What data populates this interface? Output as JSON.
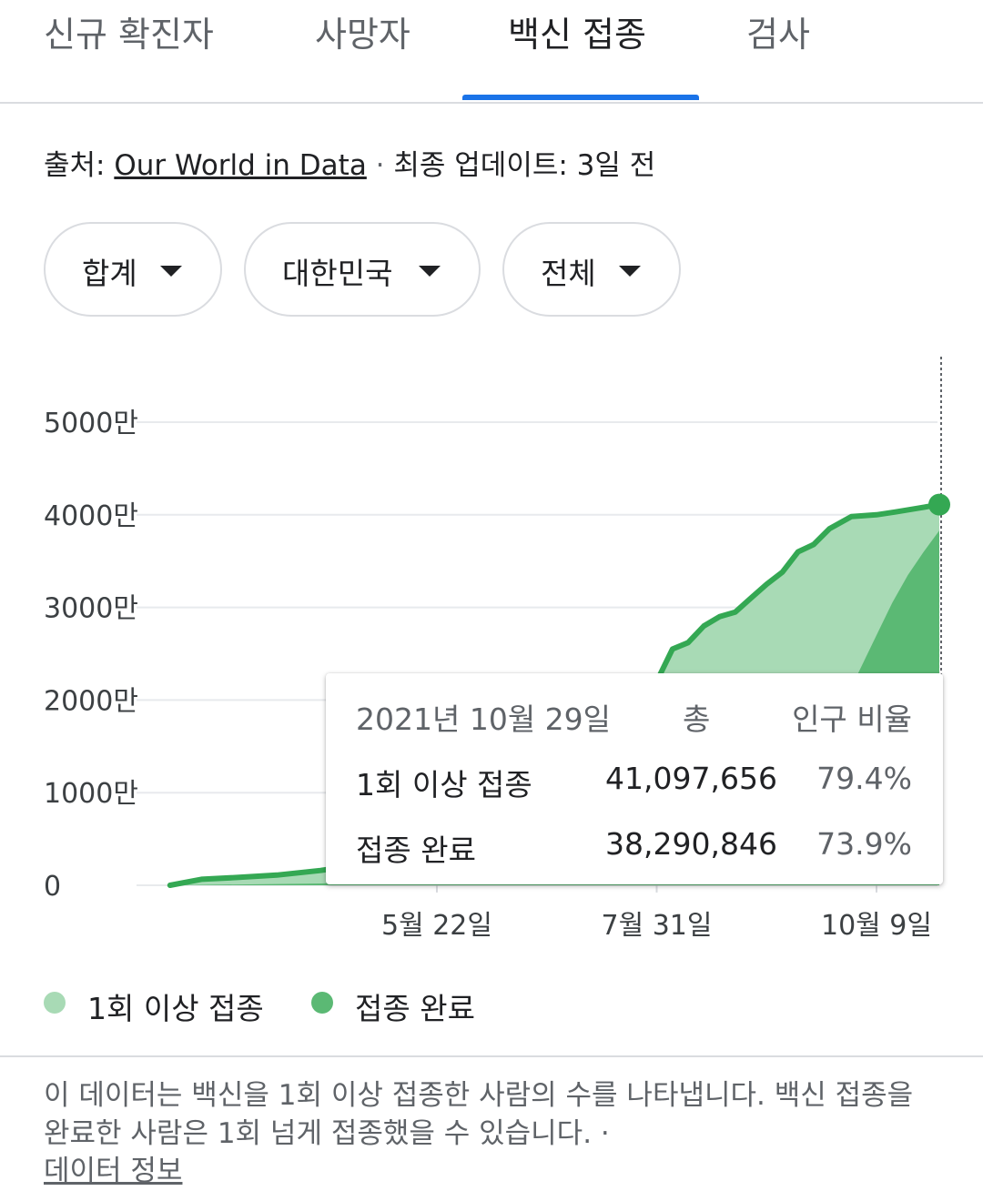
{
  "tabs": [
    {
      "label": "신규 확진자",
      "active": false
    },
    {
      "label": "사망자",
      "active": false
    },
    {
      "label": "백신 접종",
      "active": true
    },
    {
      "label": "검사",
      "active": false
    }
  ],
  "source": {
    "prefix": "출처: ",
    "name": "Our World in Data",
    "separator": " · ",
    "updated": "최종 업데이트: 3일 전"
  },
  "filters": [
    {
      "label": "합계"
    },
    {
      "label": "대한민국"
    },
    {
      "label": "전체"
    }
  ],
  "chart_data": {
    "type": "area",
    "y_unit": "만",
    "ylim": [
      0,
      5000
    ],
    "y_ticks": [
      "0",
      "1000만",
      "2000만",
      "3000만",
      "4000만",
      "5000만"
    ],
    "x_ticks": [
      "5월 22일",
      "7월 31일",
      "10월 9일"
    ],
    "colors": {
      "one_dose": "#a8dab5",
      "full": "#5bb974",
      "line": "#34a853"
    },
    "series": [
      {
        "name": "1회 이상 접종",
        "x": [
          "2021-02-26",
          "2021-03-08",
          "2021-03-20",
          "2021-04-01",
          "2021-04-15",
          "2021-04-29",
          "2021-05-05",
          "2021-05-12",
          "2021-05-22",
          "2021-06-01",
          "2021-06-10",
          "2021-06-20",
          "2021-07-01",
          "2021-07-10",
          "2021-07-20",
          "2021-07-26",
          "2021-07-31",
          "2021-08-05",
          "2021-08-10",
          "2021-08-15",
          "2021-08-20",
          "2021-08-25",
          "2021-08-30",
          "2021-09-04",
          "2021-09-09",
          "2021-09-14",
          "2021-09-19",
          "2021-09-24",
          "2021-10-01",
          "2021-10-09",
          "2021-10-15",
          "2021-10-22",
          "2021-10-29"
        ],
        "values": [
          0,
          65,
          85,
          110,
          160,
          230,
          280,
          360,
          480,
          700,
          1000,
          1300,
          1500,
          1560,
          1600,
          1800,
          2200,
          2550,
          2620,
          2800,
          2900,
          2950,
          3100,
          3250,
          3380,
          3600,
          3680,
          3850,
          3980,
          4000,
          4030,
          4070,
          4110
        ]
      },
      {
        "name": "접종 완료",
        "x": [
          "2021-02-26",
          "2021-04-15",
          "2021-05-22",
          "2021-06-10",
          "2021-07-01",
          "2021-07-31",
          "2021-08-15",
          "2021-08-30",
          "2021-09-09",
          "2021-09-19",
          "2021-09-24",
          "2021-09-29",
          "2021-10-04",
          "2021-10-09",
          "2021-10-14",
          "2021-10-19",
          "2021-10-24",
          "2021-10-29"
        ],
        "values": [
          0,
          20,
          60,
          180,
          350,
          560,
          700,
          850,
          1050,
          1350,
          1600,
          2000,
          2350,
          2700,
          3050,
          3350,
          3600,
          3830
        ]
      }
    ],
    "tooltip": {
      "date": "2021년 10월 29일",
      "col_total": "총",
      "col_ratio": "인구 비율",
      "rows": [
        {
          "label": "1회 이상 접종",
          "total": "41,097,656",
          "ratio": "79.4%"
        },
        {
          "label": "접종 완료",
          "total": "38,290,846",
          "ratio": "73.9%"
        }
      ]
    }
  },
  "legend": [
    {
      "label": "1회 이상 접종",
      "color": "#a8dab5"
    },
    {
      "label": "접종 완료",
      "color": "#5bb974"
    }
  ],
  "note": {
    "text": "이 데이터는 백신을 1회 이상 접종한 사람의 수를 나타냅니다. 백신 접종을 완료한 사람은 1회 넘게 접종했을 수 있습니다. ·",
    "link": "데이터 정보"
  }
}
